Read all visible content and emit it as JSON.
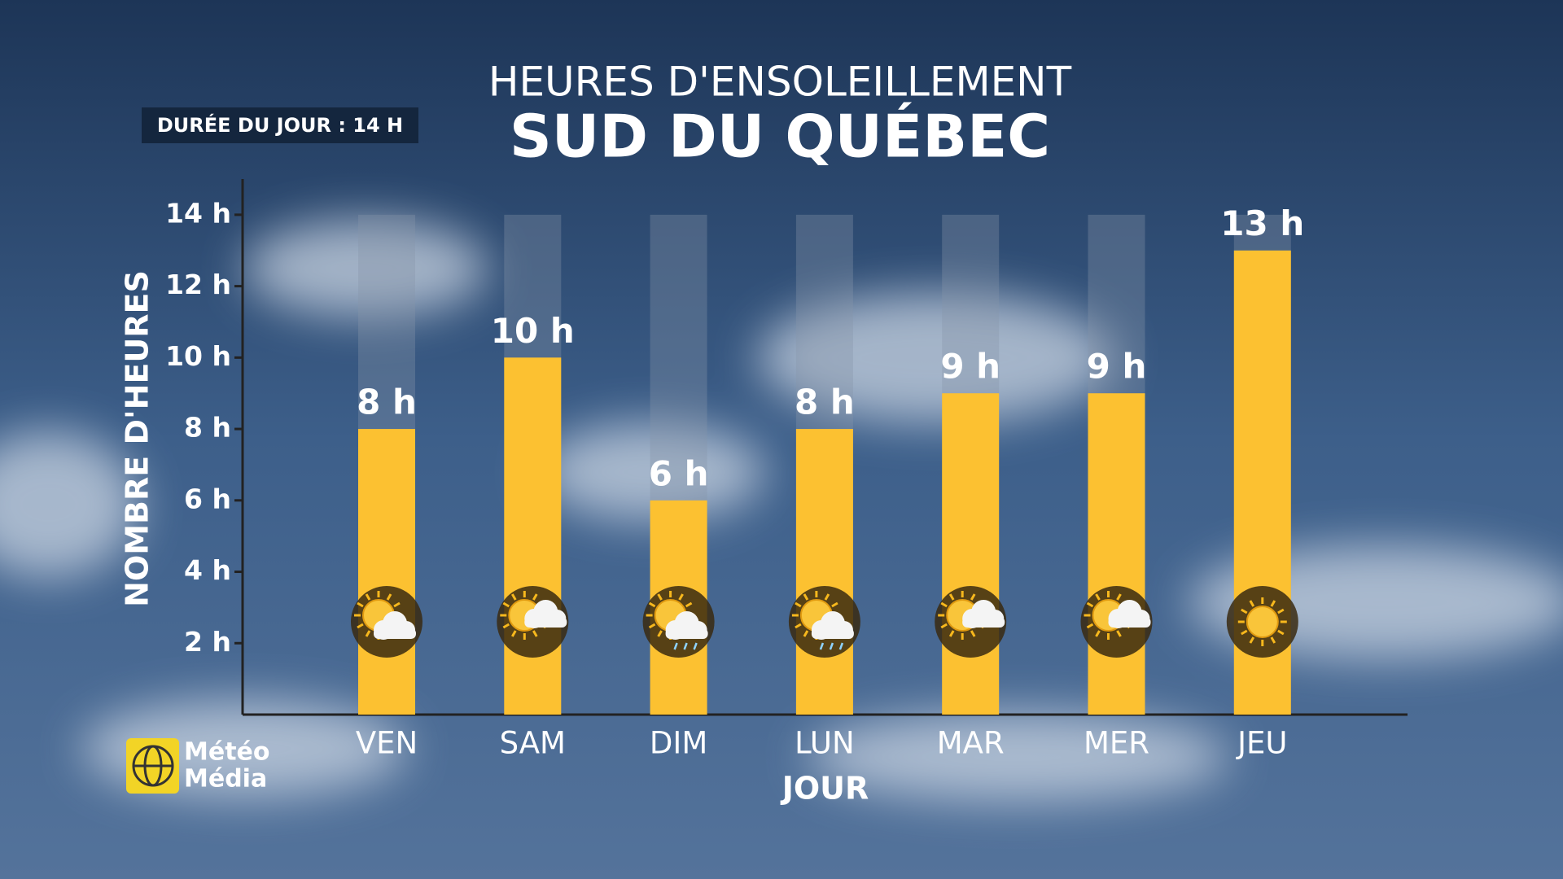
{
  "chart_data": {
    "type": "bar",
    "title": "HEURES D'ENSOLEILLEMENT",
    "subtitle": "SUD DU QUÉBEC",
    "badge": "DURÉE DU JOUR : 14 H",
    "day_length": 14,
    "x_label": "JOUR",
    "y_label": "NOMBRE D'HEURES",
    "categories": [
      "VEN",
      "SAM",
      "DIM",
      "LUN",
      "MAR",
      "MER",
      "JEU"
    ],
    "values": [
      8,
      10,
      6,
      8,
      9,
      9,
      13
    ],
    "value_labels": [
      "8 h",
      "10 h",
      "6 h",
      "8 h",
      "9 h",
      "9 h",
      "13 h"
    ],
    "color": "#fcc131",
    "ylim": [
      0,
      15
    ],
    "yticks": [
      {
        "value": 2,
        "label": "2 h"
      },
      {
        "value": 4,
        "label": "4 h"
      },
      {
        "value": 6,
        "label": "6 h"
      },
      {
        "value": 8,
        "label": "8 h"
      },
      {
        "value": 10,
        "label": "10 h"
      },
      {
        "value": 12,
        "label": "12 h"
      },
      {
        "value": 14,
        "label": "14 h"
      }
    ]
  },
  "brand": [
    "Météo",
    "Média"
  ]
}
